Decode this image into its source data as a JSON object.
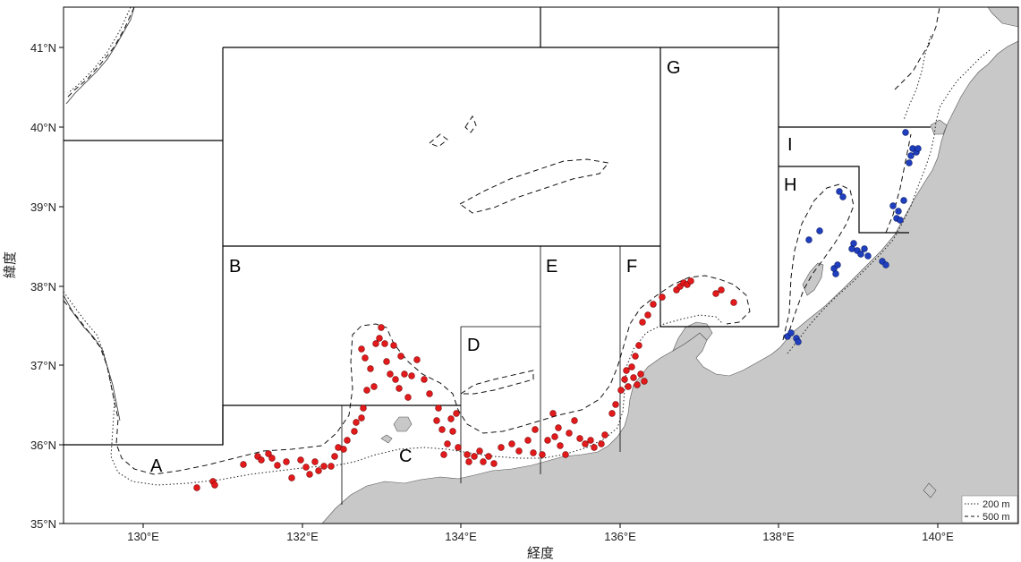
{
  "map": {
    "x_axis": {
      "title": "経度",
      "ticks": [
        "130°E",
        "132°E",
        "134°E",
        "136°E",
        "138°E",
        "140°E"
      ],
      "tick_values": [
        130,
        132,
        134,
        136,
        138,
        140
      ],
      "range": [
        129,
        141
      ]
    },
    "y_axis": {
      "title": "緯度",
      "ticks": [
        "35°N",
        "36°N",
        "37°N",
        "38°N",
        "39°N",
        "40°N",
        "41°N"
      ],
      "tick_values": [
        35,
        36,
        37,
        38,
        39,
        40,
        41
      ],
      "range": [
        35,
        41.5
      ]
    },
    "zones": [
      "A",
      "B",
      "C",
      "D",
      "E",
      "F",
      "G",
      "H",
      "I"
    ],
    "legend": [
      {
        "label": "200 m",
        "style": "dotted"
      },
      {
        "label": "500 m",
        "style": "dashed"
      }
    ],
    "colors": {
      "land": "#c8c8c8",
      "red_points": "#e31a1c",
      "blue_points": "#1f3fbf"
    }
  }
}
